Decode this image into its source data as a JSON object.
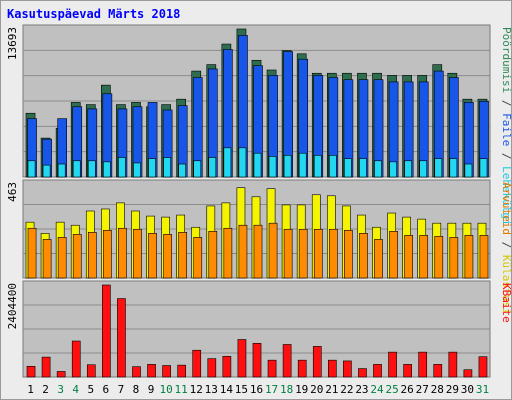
{
  "title": "Kasutuspäevad Märts 2018",
  "colors": {
    "background": "#ececec",
    "plot_bg": "#c0c0c0",
    "grid": "#8c8c8c",
    "hits": "#2e6e4e",
    "files": "#1756e8",
    "pages": "#22d8f0",
    "visits": "#f4f400",
    "sites": "#ff8c00",
    "kbytes": "#ff1010",
    "weekend_label": "#008040",
    "weekday_label": "#000000"
  },
  "right_legend": {
    "top": [
      {
        "text": "Pöördumisi",
        "color": "#2e8b57"
      },
      {
        "text": " / ",
        "color": "#444444"
      },
      {
        "text": "Faile",
        "color": "#1756e8"
      },
      {
        "text": " / ",
        "color": "#444444"
      },
      {
        "text": "Lehekülgi",
        "color": "#22c8e0"
      }
    ],
    "middle": [
      {
        "text": "Arvuteid",
        "color": "#e07800"
      },
      {
        "text": " / ",
        "color": "#444444"
      },
      {
        "text": "Külastusi",
        "color": "#d4c800"
      }
    ],
    "bottom": [
      {
        "text": "KBaite",
        "color": "#ff1010"
      }
    ]
  },
  "chart_data": {
    "type": "bar",
    "title": "Kasutuspäevad Märts 2018",
    "days": [
      "1",
      "2",
      "3",
      "4",
      "5",
      "6",
      "7",
      "8",
      "9",
      "10",
      "11",
      "12",
      "13",
      "14",
      "15",
      "16",
      "17",
      "18",
      "19",
      "20",
      "21",
      "22",
      "23",
      "24",
      "25",
      "26",
      "27",
      "28",
      "29",
      "30",
      "31"
    ],
    "weekend_days": [
      "3",
      "4",
      "10",
      "11",
      "17",
      "18",
      "24",
      "25",
      "31"
    ],
    "panels": [
      {
        "name": "top",
        "ymax_label": "13693",
        "ylim": [
          0,
          13693
        ],
        "series": [
          {
            "name": "Pöördumisi",
            "color": "#2e6e4e",
            "values": [
              5900,
              3600,
              4500,
              6900,
              6700,
              8500,
              6700,
              6900,
              6500,
              6700,
              7200,
              9800,
              10400,
              12300,
              13693,
              10800,
              9900,
              11700,
              11400,
              9600,
              9600,
              9600,
              9600,
              9600,
              9400,
              9400,
              9400,
              10400,
              9600,
              7200,
              7200
            ]
          },
          {
            "name": "Faile",
            "color": "#1756e8",
            "values": [
              5400,
              3500,
              5400,
              6500,
              6300,
              7700,
              6300,
              6500,
              6900,
              6200,
              6600,
              9200,
              10000,
              11800,
              13100,
              10300,
              9400,
              11600,
              10900,
              9400,
              9200,
              9000,
              9000,
              9000,
              8800,
              8800,
              8800,
              9800,
              9200,
              6900,
              7000
            ]
          },
          {
            "name": "Lehekülgi",
            "color": "#22d8f0",
            "values": [
              1500,
              1100,
              1200,
              1500,
              1500,
              1400,
              1800,
              1300,
              1700,
              1800,
              1200,
              1500,
              1800,
              2700,
              2700,
              2200,
              1900,
              2000,
              2200,
              2000,
              2000,
              1700,
              1700,
              1500,
              1400,
              1500,
              1500,
              1700,
              1700,
              1200,
              1700
            ]
          }
        ]
      },
      {
        "name": "middle",
        "ymax_label": "463",
        "ylim": [
          0,
          463
        ],
        "series": [
          {
            "name": "Külastusi",
            "color": "#f4f400",
            "values": [
              275,
              220,
              275,
              260,
              330,
              340,
              370,
              330,
              305,
              300,
              310,
              250,
              355,
              370,
              445,
              400,
              440,
              360,
              360,
              410,
              405,
              355,
              310,
              250,
              320,
              300,
              290,
              270,
              270,
              270,
              270
            ]
          },
          {
            "name": "Arvuteid",
            "color": "#ff8c00",
            "values": [
              245,
              190,
              200,
              215,
              225,
              235,
              245,
              240,
              220,
              215,
              225,
              200,
              230,
              245,
              260,
              260,
              270,
              240,
              240,
              240,
              240,
              235,
              220,
              190,
              230,
              210,
              210,
              205,
              200,
              210,
              210
            ]
          }
        ]
      },
      {
        "name": "bottom",
        "ymax_label": "2404400",
        "ylim": [
          0,
          2404400
        ],
        "series": [
          {
            "name": "KBaite",
            "color": "#ff1010",
            "values": [
              280000,
              520000,
              145000,
              940000,
              320000,
              2404400,
              2050000,
              270000,
              330000,
              300000,
              310000,
              700000,
              480000,
              540000,
              980000,
              880000,
              440000,
              850000,
              440000,
              800000,
              440000,
              420000,
              220000,
              330000,
              650000,
              330000,
              650000,
              330000,
              650000,
              190000,
              530000
            ]
          }
        ]
      }
    ]
  }
}
